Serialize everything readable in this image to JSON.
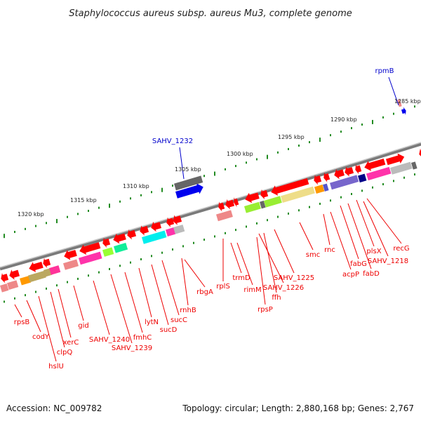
{
  "title": "Staphylococcus aureus subsp. aureus Mu3, complete genome",
  "footer": {
    "accession": "Accession: NC_009782",
    "topology": "Topology: circular; Length: 2,880,168 bp; Genes: 2,767"
  },
  "kbp_ticks": [
    "1285 kbp",
    "1290 kbp",
    "1295 kbp",
    "1300 kbp",
    "1305 kbp",
    "1310 kbp",
    "1315 kbp",
    "1320 kbp"
  ],
  "blue_genes": [
    "SAHV_1232",
    "rpmB"
  ],
  "red_genes": [
    "rpsB",
    "codY",
    "hslU",
    "clpQ",
    "xerC",
    "gid",
    "SAHV_1240",
    "SAHV_1239",
    "fmhC",
    "lytN",
    "sucD",
    "sucC",
    "rnhB",
    "rbgA",
    "rplS",
    "trmD",
    "rimM",
    "rpsP",
    "SAHV_1226",
    "ffh",
    "SAHV_1225",
    "smc",
    "rnc",
    "acpP",
    "fabG",
    "fabD",
    "plsX",
    "SAHV_1218",
    "recG"
  ],
  "colors": {
    "backbone": "#808080",
    "ticks": "#228b22",
    "gene": "#ff0000",
    "label": "#ee0000",
    "blue": "#0000ee"
  }
}
